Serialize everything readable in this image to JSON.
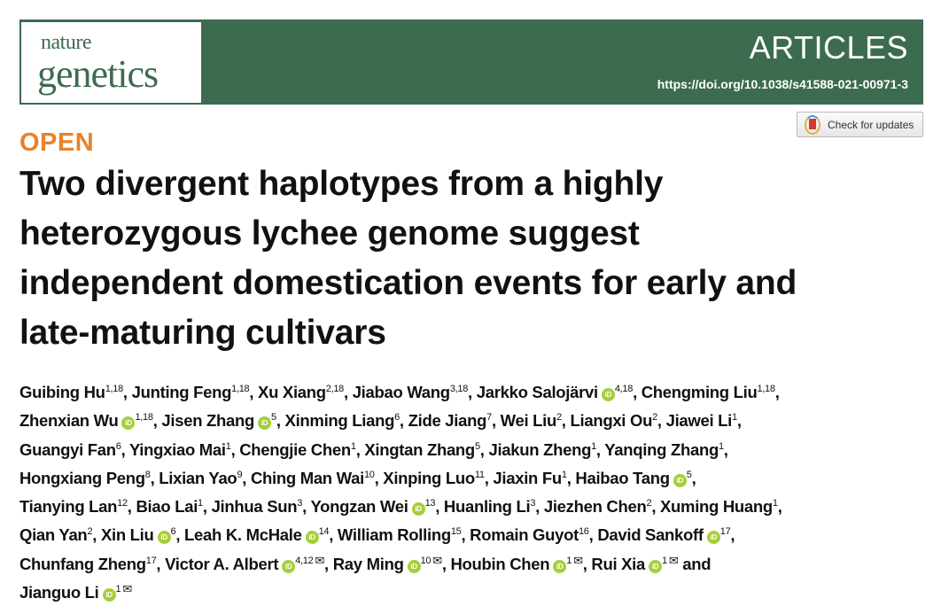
{
  "journal": {
    "logo_line1": "nature",
    "logo_line2": "genetics",
    "section": "ARTICLES",
    "doi": "https://doi.org/10.1038/s41588-021-00971-3"
  },
  "colors": {
    "banner": "#3d6b50",
    "open": "#e8822b",
    "orcid": "#a6ce39"
  },
  "check_updates": {
    "label": "Check for updates"
  },
  "access": "OPEN",
  "title_lines": [
    "Two divergent haplotypes from a highly",
    "heterozygous lychee genome suggest",
    "independent domestication events for early and",
    "late-maturing cultivars"
  ],
  "author_lines": [
    [
      {
        "name": "Guibing Hu",
        "aff": "1,18"
      },
      {
        "name": "Junting Feng",
        "aff": "1,18"
      },
      {
        "name": "Xu Xiang",
        "aff": "2,18"
      },
      {
        "name": "Jiabao Wang",
        "aff": "3,18"
      },
      {
        "name": "Jarkko Salojärvi",
        "aff": "4,18",
        "orcid": true
      },
      {
        "name": "Chengming Liu",
        "aff": "1,18"
      }
    ],
    [
      {
        "name": "Zhenxian Wu",
        "aff": "1,18",
        "orcid": true
      },
      {
        "name": "Jisen Zhang",
        "aff": "5",
        "orcid": true
      },
      {
        "name": "Xinming Liang",
        "aff": "6"
      },
      {
        "name": "Zide Jiang",
        "aff": "7"
      },
      {
        "name": "Wei Liu",
        "aff": "2"
      },
      {
        "name": "Liangxi Ou",
        "aff": "2"
      },
      {
        "name": "Jiawei Li",
        "aff": "1"
      }
    ],
    [
      {
        "name": "Guangyi Fan",
        "aff": "6"
      },
      {
        "name": "Yingxiao Mai",
        "aff": "1"
      },
      {
        "name": "Chengjie Chen",
        "aff": "1"
      },
      {
        "name": "Xingtan Zhang",
        "aff": "5"
      },
      {
        "name": "Jiakun Zheng",
        "aff": "1"
      },
      {
        "name": "Yanqing Zhang",
        "aff": "1"
      }
    ],
    [
      {
        "name": "Hongxiang Peng",
        "aff": "8"
      },
      {
        "name": "Lixian Yao",
        "aff": "9"
      },
      {
        "name": "Ching Man Wai",
        "aff": "10"
      },
      {
        "name": "Xinping Luo",
        "aff": "11"
      },
      {
        "name": "Jiaxin Fu",
        "aff": "1"
      },
      {
        "name": "Haibao Tang",
        "aff": "5",
        "orcid": true
      }
    ],
    [
      {
        "name": "Tianying Lan",
        "aff": "12"
      },
      {
        "name": "Biao Lai",
        "aff": "1"
      },
      {
        "name": "Jinhua Sun",
        "aff": "3"
      },
      {
        "name": "Yongzan Wei",
        "aff": "13",
        "orcid": true
      },
      {
        "name": "Huanling Li",
        "aff": "3"
      },
      {
        "name": "Jiezhen Chen",
        "aff": "2"
      },
      {
        "name": "Xuming Huang",
        "aff": "1"
      }
    ],
    [
      {
        "name": "Qian Yan",
        "aff": "2"
      },
      {
        "name": "Xin Liu",
        "aff": "6",
        "orcid": true
      },
      {
        "name": "Leah K. McHale",
        "aff": "14",
        "orcid": true
      },
      {
        "name": "William Rolling",
        "aff": "15"
      },
      {
        "name": "Romain Guyot",
        "aff": "16"
      },
      {
        "name": "David Sankoff",
        "aff": "17",
        "orcid": true
      }
    ],
    [
      {
        "name": "Chunfang Zheng",
        "aff": "17"
      },
      {
        "name": "Victor A. Albert",
        "aff": "4,12",
        "orcid": true,
        "mail": true
      },
      {
        "name": "Ray Ming",
        "aff": "10",
        "orcid": true,
        "mail": true
      },
      {
        "name": "Houbin Chen",
        "aff": "1",
        "orcid": true,
        "mail": true
      },
      {
        "name": "Rui Xia",
        "aff": "1",
        "orcid": true,
        "mail": true,
        "sep": " and"
      }
    ],
    [
      {
        "name": "Jianguo Li",
        "aff": "1",
        "orcid": true,
        "mail": true,
        "last": true
      }
    ]
  ],
  "orcid_glyph": "iD",
  "mail_glyph": "✉"
}
